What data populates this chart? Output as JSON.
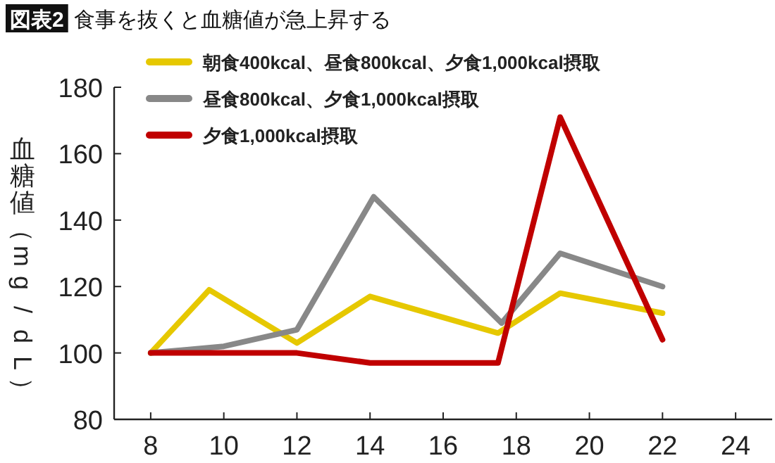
{
  "chart_data": {
    "type": "line",
    "title": "食事を抜くと血糖値が急上昇する",
    "annotations": [
      "図表2"
    ],
    "ylabel": "血糖値（mg/dL）",
    "xlim": [
      7,
      25
    ],
    "xticks": [
      8,
      10,
      12,
      14,
      16,
      18,
      20,
      22,
      24
    ],
    "ylim": [
      80,
      180
    ],
    "yticks": [
      80,
      100,
      120,
      140,
      160,
      180
    ],
    "grid": false,
    "legend": "top left",
    "marker": "none",
    "line_style": "solid",
    "series": [
      {
        "name": "朝食400kcal、昼食800kcal、夕食1,000kcal摂取",
        "color": "#e6c800",
        "x": [
          8,
          9.6,
          12,
          14,
          17.5,
          19.2,
          22
        ],
        "values": [
          100,
          119,
          103,
          117,
          106,
          118,
          112
        ]
      },
      {
        "name": "昼食800kcal、夕食1,000kcal摂取",
        "color": "#888888",
        "x": [
          8,
          10,
          12,
          14.1,
          17.6,
          19.2,
          22
        ],
        "values": [
          100,
          102,
          107,
          147,
          109,
          130,
          120
        ]
      },
      {
        "name": "夕食1,000kcal摂取",
        "color": "#c00000",
        "x": [
          8,
          12,
          14,
          17.5,
          19.2,
          22
        ],
        "values": [
          100,
          100,
          97,
          97,
          171,
          104
        ]
      }
    ]
  }
}
